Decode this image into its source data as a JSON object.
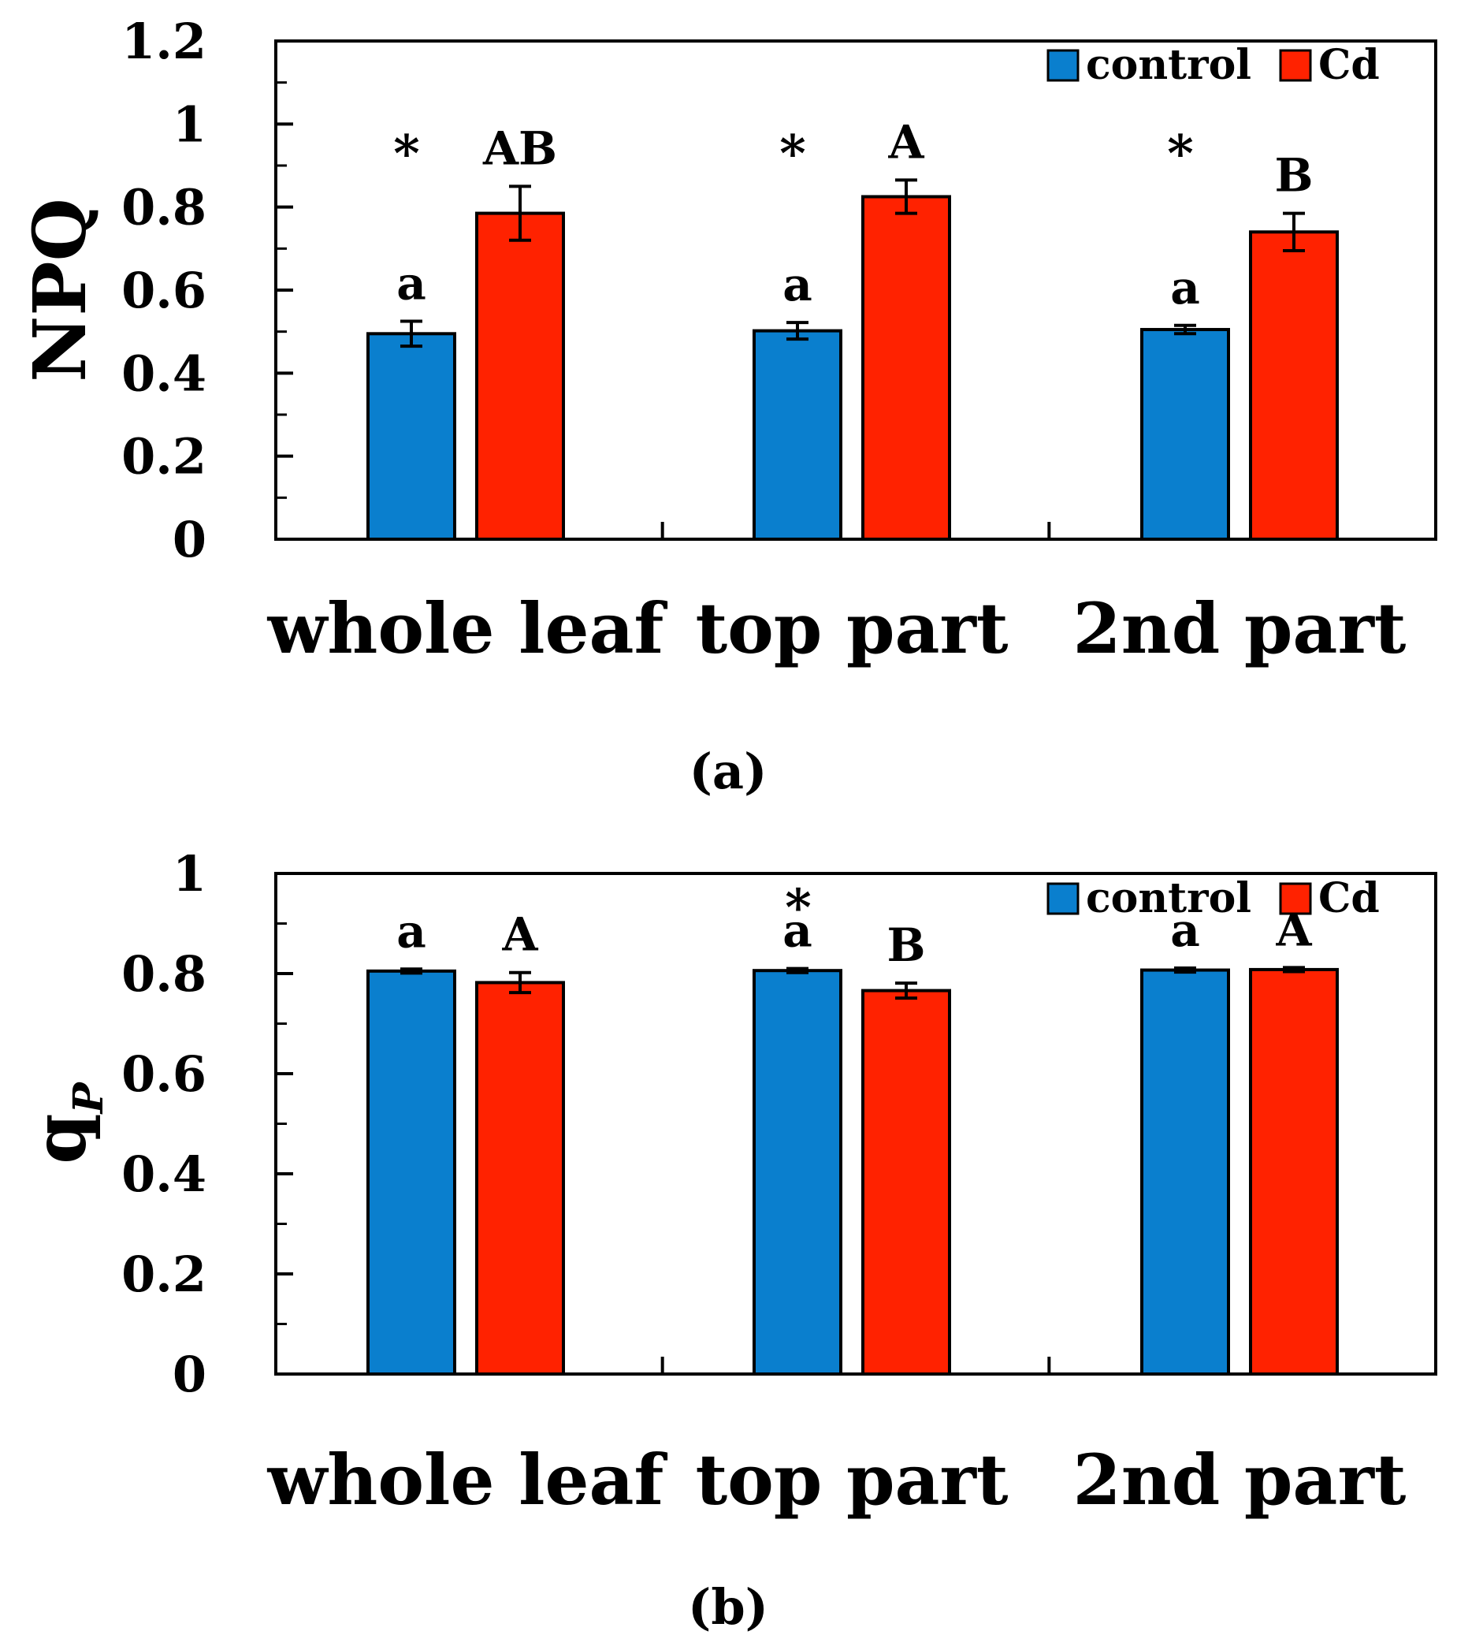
{
  "chart_data": [
    {
      "id": "a",
      "type": "bar",
      "panel_label": "(a)",
      "ylabel": "NPQ",
      "ylabel_sub": "",
      "ylim": [
        0,
        1.2
      ],
      "yticks": [
        "0",
        "0.2",
        "0.4",
        "0.6",
        "0.8",
        "1",
        "1.2"
      ],
      "ytick_values": [
        0,
        0.2,
        0.4,
        0.6,
        0.8,
        1.0,
        1.2
      ],
      "categories": [
        "whole leaf",
        "top part",
        "2nd part"
      ],
      "legend": {
        "placement": "top-right",
        "entries": [
          "control",
          "Cd"
        ]
      },
      "series": [
        {
          "name": "control",
          "color": "#0a7fce",
          "values": [
            0.495,
            0.502,
            0.505
          ],
          "errors": [
            0.03,
            0.02,
            0.01
          ],
          "letters": [
            "a",
            "a",
            "a"
          ]
        },
        {
          "name": "Cd",
          "color": "#ff2200",
          "values": [
            0.785,
            0.825,
            0.74
          ],
          "errors": [
            0.065,
            0.04,
            0.045
          ],
          "letters": [
            "AB",
            "A",
            "B"
          ]
        }
      ],
      "significance": [
        "*",
        "*",
        "*"
      ]
    },
    {
      "id": "b",
      "type": "bar",
      "panel_label": "(b)",
      "ylabel": "q",
      "ylabel_sub": "P",
      "ylim": [
        0,
        1.0
      ],
      "yticks": [
        "0",
        "0.2",
        "0.4",
        "0.6",
        "0.8",
        "1"
      ],
      "ytick_values": [
        0,
        0.2,
        0.4,
        0.6,
        0.8,
        1.0
      ],
      "categories": [
        "whole leaf",
        "top part",
        "2nd part"
      ],
      "legend": {
        "placement": "top-right",
        "entries": [
          "control",
          "Cd"
        ]
      },
      "series": [
        {
          "name": "control",
          "color": "#0a7fce",
          "values": [
            0.805,
            0.806,
            0.807
          ],
          "errors": [
            0.004,
            0.004,
            0.004
          ],
          "letters": [
            "a",
            "a",
            "a"
          ]
        },
        {
          "name": "Cd",
          "color": "#ff2200",
          "values": [
            0.782,
            0.766,
            0.808
          ],
          "errors": [
            0.02,
            0.015,
            0.004
          ],
          "letters": [
            "A",
            "B",
            "A"
          ]
        }
      ],
      "significance": [
        "",
        "*",
        ""
      ]
    }
  ]
}
